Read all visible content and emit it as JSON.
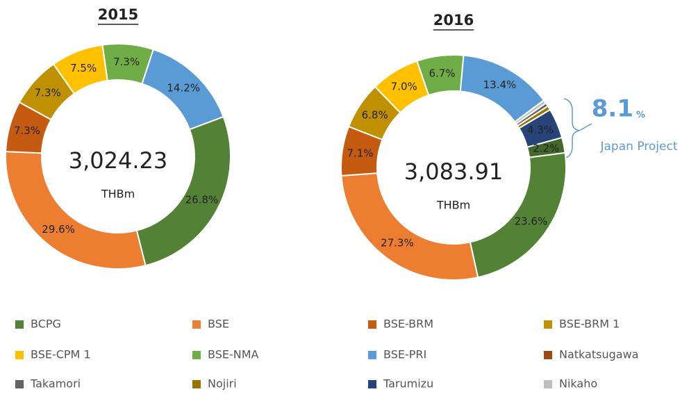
{
  "chart_data": [
    {
      "type": "donut",
      "title": "2015",
      "center_value": "3,024.23",
      "center_unit": "THBm",
      "values": [
        7.3,
        14.2,
        26.8,
        29.6,
        7.3,
        7.3,
        7.5
      ],
      "value_labels": [
        "7.3%",
        "14.2%",
        "26.8%",
        "29.6%",
        "7.3%",
        "7.3%",
        "7.5%"
      ],
      "colors": [
        "#70ad47",
        "#5b9bd5",
        "#538135",
        "#ed7d31",
        "#c55a11",
        "#bf9000",
        "#ffc000"
      ]
    },
    {
      "type": "donut",
      "title": "2016",
      "center_value": "3,083.91",
      "center_unit": "THBm",
      "values": [
        6.7,
        13.4,
        0.5,
        0.5,
        0.6,
        4.3,
        2.2,
        23.6,
        27.3,
        7.1,
        6.8,
        7.0
      ],
      "value_labels": [
        "6.7%",
        "13.4%",
        null,
        null,
        null,
        "4.3%",
        "2.2%",
        "23.6%",
        "27.3%",
        "7.1%",
        "6.8%",
        "7.0%"
      ],
      "colors": [
        "#70ad47",
        "#5b9bd5",
        "#bfbfbf",
        "#636363",
        "#997300",
        "#264478",
        "#43682b",
        "#538135",
        "#ed7d31",
        "#c55a11",
        "#bf9000",
        "#ffc000"
      ],
      "annotation": {
        "value": "8.1",
        "unit": "%",
        "label": "Japan Project"
      }
    }
  ],
  "legend": {
    "names": [
      "BCPG",
      "BSE",
      "BSE-BRM",
      "BSE-BRM 1",
      "BSE-CPM 1",
      "BSE-NMA",
      "BSE-PRI",
      "Natkatsugawa",
      "Takamori",
      "Nojiri",
      "Tarumizu",
      "Nikaho"
    ],
    "colors": [
      "#538135",
      "#ed7d31",
      "#c55a11",
      "#bf9000",
      "#ffc000",
      "#70ad47",
      "#5b9bd5",
      "#9e480e",
      "#636363",
      "#997300",
      "#264478",
      "#bfbfbf"
    ]
  }
}
